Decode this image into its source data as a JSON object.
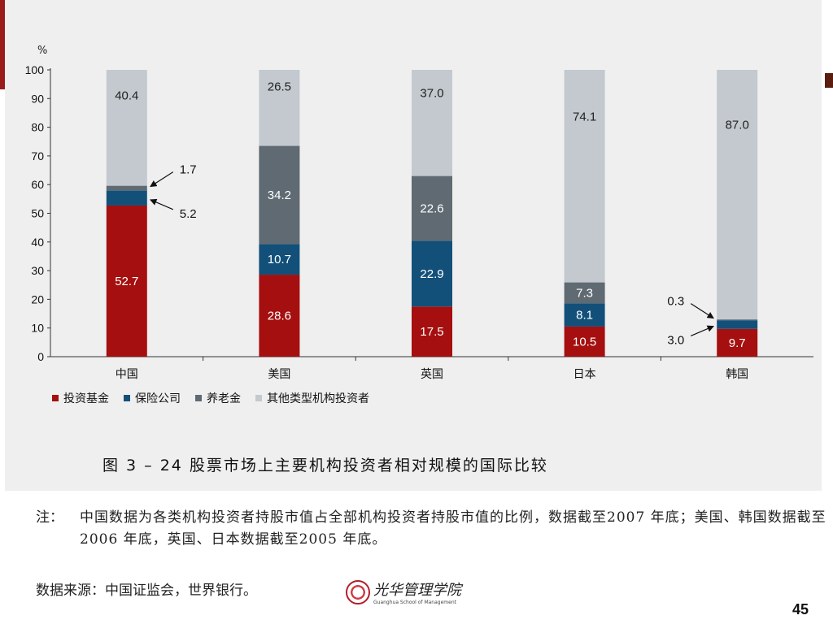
{
  "chart_data": {
    "type": "bar",
    "stacked": true,
    "y_unit": "%",
    "ylim": [
      0,
      100
    ],
    "yticks": [
      0,
      10,
      20,
      30,
      40,
      50,
      60,
      70,
      80,
      90,
      100
    ],
    "categories": [
      "中国",
      "美国",
      "英国",
      "日本",
      "韩国"
    ],
    "series": [
      {
        "name": "投资基金",
        "color": "#a50f0f",
        "values": [
          52.7,
          28.6,
          17.5,
          10.5,
          9.7
        ]
      },
      {
        "name": "保险公司",
        "color": "#12507a",
        "values": [
          5.2,
          10.7,
          22.9,
          8.1,
          3.0
        ]
      },
      {
        "name": "养老金",
        "color": "#5f6a72",
        "values": [
          1.7,
          34.2,
          22.6,
          7.3,
          0.3
        ]
      },
      {
        "name": "其他类型机构投资者",
        "color": "#c3c9cf",
        "values": [
          40.4,
          26.5,
          37.0,
          74.1,
          87.0
        ]
      }
    ],
    "bar_labels": [
      [
        "52.7",
        "",
        "",
        "40.4"
      ],
      [
        "28.6",
        "10.7",
        "34.2",
        "26.5"
      ],
      [
        "17.5",
        "22.9",
        "22.6",
        "37.0"
      ],
      [
        "10.5",
        "8.1",
        "7.3",
        "74.1"
      ],
      [
        "9.7",
        "",
        "",
        "87.0"
      ]
    ],
    "callouts": [
      {
        "text": "1.7",
        "category": 0,
        "side": "right",
        "target_series": 2
      },
      {
        "text": "5.2",
        "category": 0,
        "side": "right",
        "target_series": 1
      },
      {
        "text": "0.3",
        "category": 4,
        "side": "left",
        "target_series": 2
      },
      {
        "text": "3.0",
        "category": 4,
        "side": "left",
        "target_series": 1
      }
    ],
    "grid": false,
    "legend_position": "bottom-left",
    "caption": "图 3 – 24    股票市场上主要机构投资者相对规模的国际比较"
  },
  "note": {
    "label": "注：",
    "text": "中国数据为各类机构投资者持股市值占全部机构投资者持股市值的比例，数据截至2007 年底；美国、韩国数据截至2006 年底，英国、日本数据截至2005 年底。"
  },
  "source": "数据来源：中国证监会，世界银行。",
  "logo": {
    "chinese": "光华管理学院",
    "english": "Guanghua School of Management"
  },
  "page_number": "45"
}
